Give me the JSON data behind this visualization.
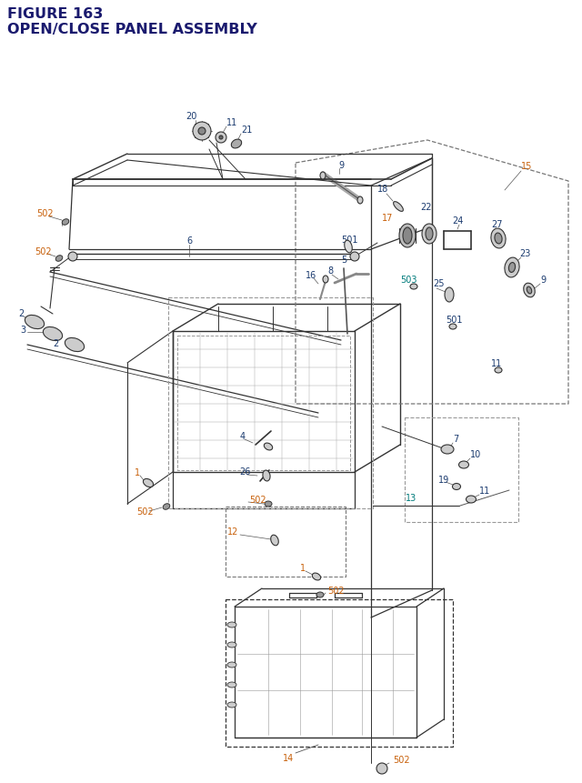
{
  "title_line1": "FIGURE 163",
  "title_line2": "OPEN/CLOSE PANEL ASSEMBLY",
  "title_color": "#1a1a6e",
  "title_fontsize": 11.5,
  "bg_color": "#ffffff",
  "lbl": "#1a3a6e",
  "org": "#c8600a",
  "tel": "#007b7b",
  "lc": "#333333",
  "dc": "#777777",
  "fs": 7.0
}
